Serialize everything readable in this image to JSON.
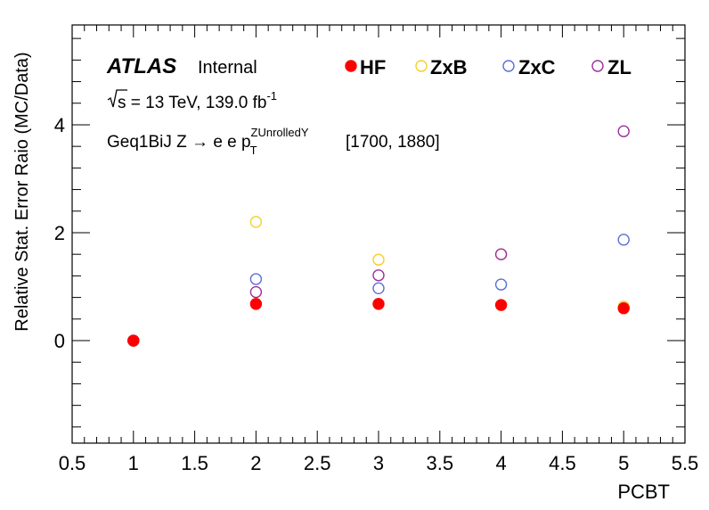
{
  "chart_data": {
    "type": "scatter",
    "xlabel": "PCBT",
    "ylabel": "Relative Stat. Error Raio (MC/Data)",
    "xlim": [
      0.5,
      5.5
    ],
    "ylim": [
      -1.9,
      5.85
    ],
    "x_ticks": [
      0.5,
      1,
      1.5,
      2,
      2.5,
      3,
      3.5,
      4,
      4.5,
      5,
      5.5
    ],
    "x_tick_labels": [
      "0.5",
      "1",
      "1.5",
      "2",
      "2.5",
      "3",
      "3.5",
      "4",
      "4.5",
      "5",
      "5.5"
    ],
    "y_ticks": [
      0,
      2,
      4
    ],
    "y_tick_labels": [
      "0",
      "2",
      "4"
    ],
    "grid": false,
    "legend_position": "top",
    "annotations": {
      "experiment": "ATLAS",
      "status": "Internal",
      "energy_prefix": "s = 13 TeV, 139.0 fb",
      "energy_sup": "-1",
      "region": "Geq1BiJ  Z → e e   p",
      "region_sub": "T",
      "region_sup": "ZUnrolledY",
      "range": "[1700, 1880]"
    },
    "series": [
      {
        "name": "HF",
        "color": "#ff0000",
        "marker": "filled-circle",
        "x": [
          1,
          2,
          3,
          4,
          5
        ],
        "y": [
          0.0,
          0.68,
          0.68,
          0.66,
          0.6
        ]
      },
      {
        "name": "ZxB",
        "color": "#f5d02a",
        "marker": "open-circle",
        "x": [
          1,
          2,
          3,
          4,
          5
        ],
        "y": [
          0.0,
          2.2,
          1.5,
          1.6,
          0.63
        ]
      },
      {
        "name": "ZxC",
        "color": "#5a6fd6",
        "marker": "open-circle",
        "x": [
          1,
          2,
          3,
          4,
          5
        ],
        "y": [
          0.0,
          1.14,
          0.97,
          1.04,
          1.87
        ]
      },
      {
        "name": "ZL",
        "color": "#9b2fa0",
        "marker": "open-circle",
        "x": [
          1,
          2,
          3,
          4,
          5
        ],
        "y": [
          0.0,
          0.9,
          1.21,
          1.6,
          3.88
        ]
      }
    ]
  }
}
